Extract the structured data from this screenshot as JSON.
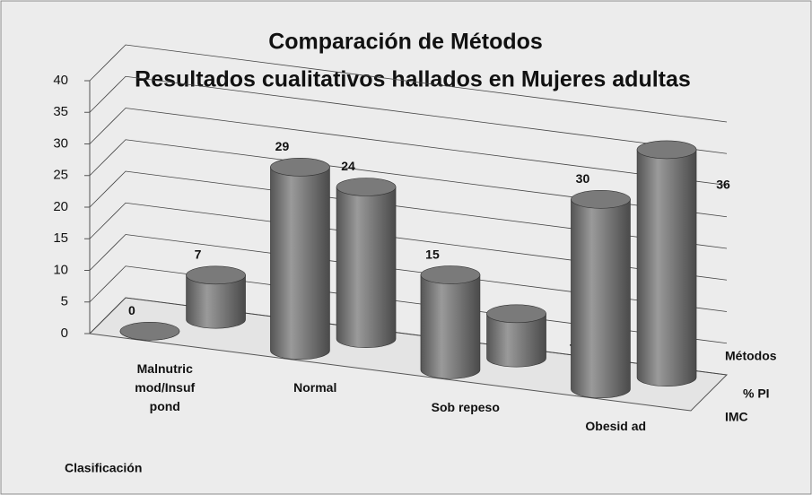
{
  "chart_data": {
    "type": "bar3d",
    "title": "Comparación  de Métodos",
    "subtitle": "Resultados  cualitativos  hallados  en Mujeres adultas",
    "categories": [
      "Malnutric mod/Insuf pond",
      "Normal",
      "Sob repeso",
      "Obesid ad"
    ],
    "x_label": "Clasificación",
    "depth_label": "Métodos",
    "series": [
      {
        "name": "IMC",
        "color": "#7a7a7a",
        "values": [
          0,
          29,
          15,
          30
        ]
      },
      {
        "name": "% PI",
        "color": "#7a7a7a",
        "values": [
          7,
          24,
          7,
          36
        ]
      }
    ],
    "ylim": [
      0,
      40
    ],
    "yticks": [
      0,
      5,
      10,
      15,
      20,
      25,
      30,
      35,
      40
    ],
    "grid": true
  }
}
